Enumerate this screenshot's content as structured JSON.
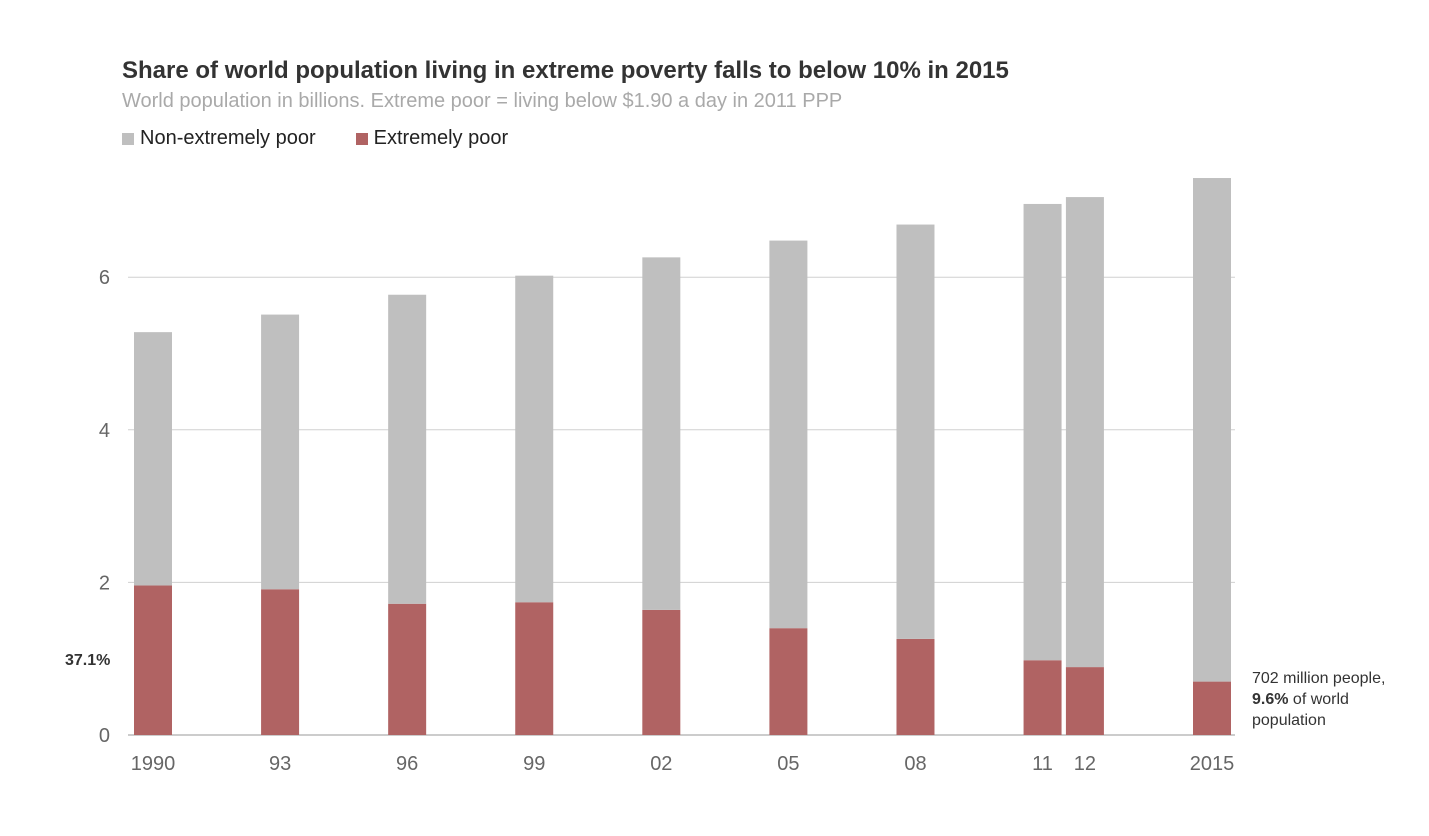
{
  "chart_data": {
    "type": "bar",
    "stacked": true,
    "title": "Share of world population living in extreme poverty falls to below 10% in 2015",
    "subtitle": "World population in billions. Extreme poor = living below $1.90 a day in 2011 PPP",
    "categories": [
      "1990",
      "93",
      "96",
      "99",
      "02",
      "05",
      "08",
      "11",
      "12",
      "2015"
    ],
    "years": [
      1990,
      1993,
      1996,
      1999,
      2002,
      2005,
      2008,
      2011,
      2012,
      2015
    ],
    "series": [
      {
        "name": "Extremely poor",
        "color": "#b06363",
        "values": [
          1.96,
          1.91,
          1.72,
          1.74,
          1.64,
          1.4,
          1.26,
          0.98,
          0.89,
          0.7
        ]
      },
      {
        "name": "Non-extremely poor",
        "color": "#bfbfbf",
        "values": [
          3.32,
          3.6,
          4.05,
          4.28,
          4.62,
          5.08,
          5.43,
          5.98,
          6.16,
          6.6
        ]
      }
    ],
    "yticks": [
      0,
      2,
      4,
      6
    ],
    "ylim": [
      0,
      7.6
    ],
    "grid": true,
    "legend": "top-left",
    "annotations": {
      "first_bar_share": "37.1%",
      "last_bar_line1": "702 million people,",
      "last_bar_bold": "9.6%",
      "last_bar_rest": " of world",
      "last_bar_line3": "population"
    }
  }
}
